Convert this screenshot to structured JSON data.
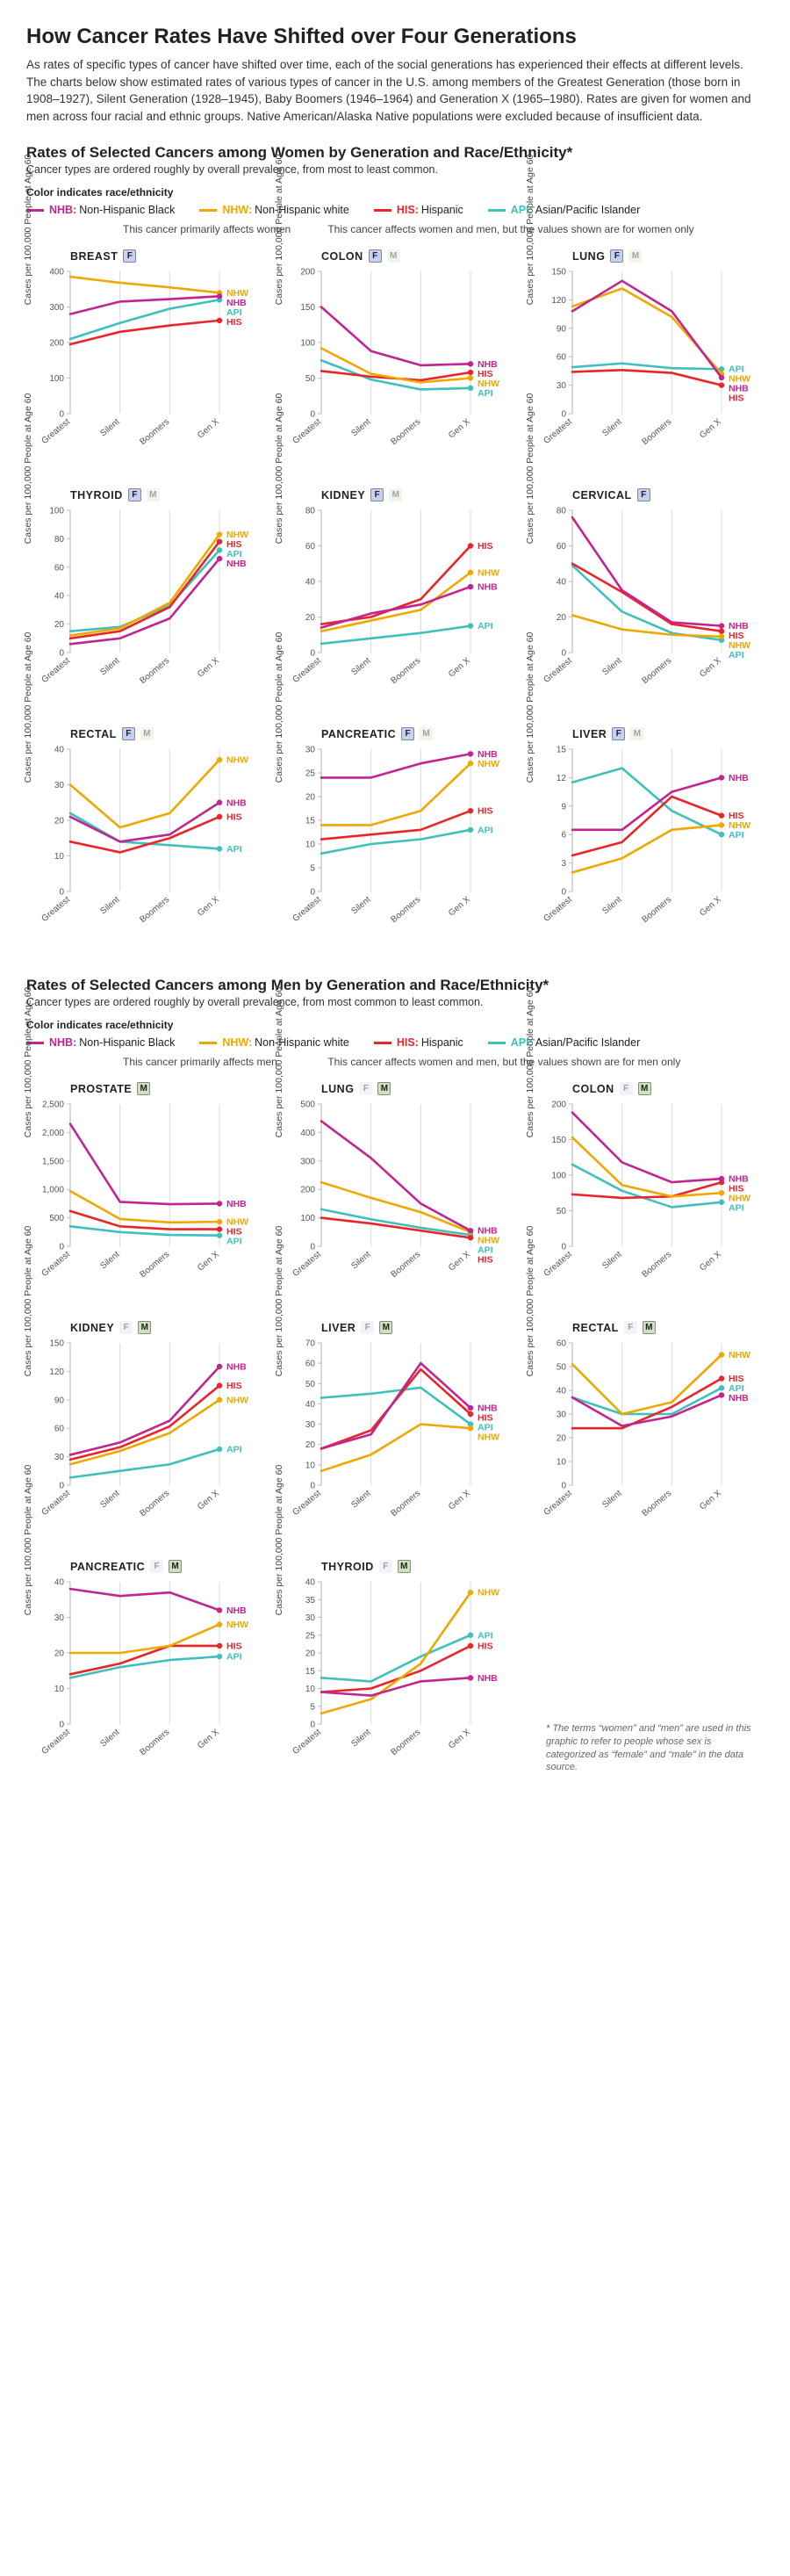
{
  "colors": {
    "NHB": "#c2258f",
    "NHW": "#efa800",
    "HIS": "#e8262a",
    "API": "#3fc0be",
    "axis": "#bdbdbd",
    "grid": "#d9d9d9",
    "text": "#222222",
    "bg": "#ffffff"
  },
  "title": "How Cancer Rates Have Shifted over Four Generations",
  "intro": "As rates of specific types of cancer have shifted over time, each of the social generations has experienced their effects at different levels. The charts below show estimated rates of various types of cancer in the U.S. among members of the Greatest Generation (those born in 1908–1927), Silent Generation (1928–1945), Baby Boomers (1946–1964) and Generation X (1965–1980). Rates are given for women and men across four racial and ethnic groups. Native American/Alaska Native populations were excluded because of insufficient data.",
  "legend_title": "Color indicates race/ethnicity",
  "legend": [
    {
      "code": "NHB",
      "label": "Non-Hispanic Black"
    },
    {
      "code": "NHW",
      "label": "Non-Hispanic white"
    },
    {
      "code": "HIS",
      "label": "Hispanic"
    },
    {
      "code": "API",
      "label": "Asian/Pacific Islander"
    }
  ],
  "categories": [
    "Greatest",
    "Silent",
    "Boomers",
    "Gen X"
  ],
  "ylabel": "Cases per 100,000 People at Age 60",
  "hint_primary_f": "This cancer primarily affects women",
  "hint_primary_m": "This cancer primarily affects men",
  "hint_both_f": "This cancer affects women and men, but the values shown are for women only",
  "hint_both_m": "This cancer affects women and men, but the values shown are for men only",
  "footnote": "* The terms “women” and “men” are used in this graphic to refer to people whose sex is categorized as “female” and “male” in the data source.",
  "sections": [
    {
      "heading": "Rates of Selected Cancers among Women by Generation and Race/Ethnicity*",
      "sub": "Cancer types are ordered roughly by overall prevalence, from most to least common.",
      "hint_primary": "hint_primary_f",
      "hint_both": "hint_both_f",
      "primary_badge": "F",
      "charts": [
        {
          "name": "BREAST",
          "badges": [
            "Fp"
          ],
          "ymax": 400,
          "ystep": 100,
          "endlabels": [
            "NHW",
            "NHB",
            "API",
            "HIS"
          ],
          "series": {
            "NHB": [
              280,
              315,
              322,
              330
            ],
            "NHW": [
              385,
              368,
              355,
              340
            ],
            "HIS": [
              195,
              230,
              248,
              262
            ],
            "API": [
              210,
              255,
              295,
              320
            ]
          }
        },
        {
          "name": "COLON",
          "badges": [
            "Fp",
            "M"
          ],
          "ymax": 200,
          "ystep": 50,
          "endlabels": [
            "NHB",
            "HIS",
            "NHW",
            "API"
          ],
          "series": {
            "NHB": [
              150,
              88,
              68,
              70
            ],
            "NHW": [
              92,
              56,
              44,
              50
            ],
            "HIS": [
              60,
              52,
              47,
              58
            ],
            "API": [
              75,
              48,
              34,
              36
            ]
          }
        },
        {
          "name": "LUNG",
          "badges": [
            "Fp",
            "M"
          ],
          "ymax": 150,
          "ystep": 30,
          "endlabels": [
            "API",
            "NHW",
            "NHB",
            "HIS"
          ],
          "series": {
            "NHB": [
              108,
              140,
              108,
              38
            ],
            "NHW": [
              113,
              132,
              102,
              42
            ],
            "HIS": [
              44,
              46,
              43,
              30
            ],
            "API": [
              49,
              53,
              48,
              47
            ]
          }
        },
        {
          "name": "THYROID",
          "badges": [
            "Fp",
            "M"
          ],
          "ymax": 100,
          "ystep": 20,
          "endlabels": [
            "NHW",
            "HIS",
            "API",
            "NHB"
          ],
          "series": {
            "NHB": [
              6,
              10,
              24,
              66
            ],
            "NHW": [
              12,
              17,
              35,
              83
            ],
            "HIS": [
              10,
              15,
              32,
              78
            ],
            "API": [
              15,
              18,
              33,
              72
            ]
          }
        },
        {
          "name": "KIDNEY",
          "badges": [
            "Fp",
            "M"
          ],
          "ymax": 80,
          "ystep": 20,
          "endlabels": [
            "HIS",
            "NHW",
            "NHB",
            "API"
          ],
          "series": {
            "NHB": [
              14,
              22,
              27,
              37
            ],
            "NHW": [
              12,
              18,
              24,
              45
            ],
            "HIS": [
              16,
              20,
              30,
              60
            ],
            "API": [
              5,
              8,
              11,
              15
            ]
          }
        },
        {
          "name": "CERVICAL",
          "badges": [
            "Fp"
          ],
          "ymax": 80,
          "ystep": 20,
          "endlabels": [
            "NHB",
            "HIS",
            "NHW",
            "API"
          ],
          "series": {
            "NHB": [
              76,
              35,
              17,
              15
            ],
            "NHW": [
              21,
              13,
              10,
              9
            ],
            "HIS": [
              50,
              34,
              16,
              12
            ],
            "API": [
              49,
              23,
              11,
              7
            ]
          }
        },
        {
          "name": "RECTAL",
          "badges": [
            "Fp",
            "M"
          ],
          "ymax": 40,
          "ystep": 10,
          "endlabels": [
            "NHW",
            "NHB",
            "HIS",
            "API"
          ],
          "series": {
            "NHB": [
              21,
              14,
              16,
              25
            ],
            "NHW": [
              30,
              18,
              22,
              37
            ],
            "HIS": [
              14,
              11,
              15,
              21
            ],
            "API": [
              22,
              14,
              13,
              12
            ]
          }
        },
        {
          "name": "PANCREATIC",
          "badges": [
            "Fp",
            "M"
          ],
          "ymax": 30,
          "ystep": 5,
          "endlabels": [
            "NHB",
            "NHW",
            "HIS",
            "API"
          ],
          "series": {
            "NHB": [
              24,
              24,
              27,
              29
            ],
            "NHW": [
              14,
              14,
              17,
              27
            ],
            "HIS": [
              11,
              12,
              13,
              17
            ],
            "API": [
              8,
              10,
              11,
              13
            ]
          }
        },
        {
          "name": "LIVER",
          "badges": [
            "Fp",
            "M"
          ],
          "ymax": 15,
          "ystep": 3,
          "endlabels": [
            "NHB",
            "HIS",
            "NHW",
            "API"
          ],
          "series": {
            "NHB": [
              6.5,
              6.5,
              10.5,
              12
            ],
            "NHW": [
              2,
              3.5,
              6.5,
              7
            ],
            "HIS": [
              3.8,
              5.2,
              10,
              8
            ],
            "API": [
              11.5,
              13,
              8.5,
              6
            ]
          }
        }
      ]
    },
    {
      "heading": "Rates of Selected Cancers among Men by Generation and Race/Ethnicity*",
      "sub": "Cancer types are ordered roughly by overall prevalence, from most common to least common.",
      "hint_primary": "hint_primary_m",
      "hint_both": "hint_both_m",
      "primary_badge": "M",
      "charts": [
        {
          "name": "PROSTATE",
          "badges": [
            "Mp"
          ],
          "ymax": 2500,
          "ystep": 500,
          "endlabels": [
            "NHB",
            "NHW",
            "HIS",
            "API"
          ],
          "series": {
            "NHB": [
              2150,
              780,
              740,
              750
            ],
            "NHW": [
              970,
              480,
              420,
              430
            ],
            "HIS": [
              620,
              350,
              300,
              300
            ],
            "API": [
              350,
              250,
              200,
              190
            ]
          }
        },
        {
          "name": "LUNG",
          "badges": [
            "F",
            "Mp"
          ],
          "ymax": 500,
          "ystep": 100,
          "endlabels": [
            "NHB",
            "NHW",
            "API",
            "HIS"
          ],
          "series": {
            "NHB": [
              440,
              310,
              150,
              55
            ],
            "NHW": [
              225,
              170,
              120,
              50
            ],
            "HIS": [
              100,
              80,
              55,
              30
            ],
            "API": [
              130,
              95,
              65,
              40
            ]
          }
        },
        {
          "name": "COLON",
          "badges": [
            "F",
            "Mp"
          ],
          "ymax": 200,
          "ystep": 50,
          "endlabels": [
            "NHB",
            "HIS",
            "NHW",
            "API"
          ],
          "series": {
            "NHB": [
              188,
              118,
              90,
              95
            ],
            "NHW": [
              153,
              86,
              70,
              75
            ],
            "HIS": [
              73,
              68,
              70,
              90
            ],
            "API": [
              115,
              78,
              55,
              62
            ]
          }
        },
        {
          "name": "KIDNEY",
          "badges": [
            "F",
            "Mp"
          ],
          "ymax": 150,
          "ystep": 30,
          "endlabels": [
            "NHB",
            "HIS",
            "NHW",
            "API"
          ],
          "series": {
            "NHB": [
              32,
              45,
              68,
              125
            ],
            "NHW": [
              22,
              36,
              55,
              90
            ],
            "HIS": [
              27,
              40,
              62,
              105
            ],
            "API": [
              8,
              15,
              22,
              38
            ]
          }
        },
        {
          "name": "LIVER",
          "badges": [
            "F",
            "Mp"
          ],
          "ymax": 70,
          "ystep": 10,
          "endlabels": [
            "NHB",
            "HIS",
            "API",
            "NHW"
          ],
          "series": {
            "NHB": [
              18,
              25,
              60,
              38
            ],
            "NHW": [
              7,
              15,
              30,
              28
            ],
            "HIS": [
              18,
              27,
              57,
              35
            ],
            "API": [
              43,
              45,
              48,
              30
            ]
          }
        },
        {
          "name": "RECTAL",
          "badges": [
            "F",
            "Mp"
          ],
          "ymax": 60,
          "ystep": 10,
          "endlabels": [
            "NHW",
            "HIS",
            "API",
            "NHB"
          ],
          "series": {
            "NHB": [
              37,
              25,
              29,
              38
            ],
            "NHW": [
              51,
              30,
              35,
              55
            ],
            "HIS": [
              24,
              24,
              33,
              45
            ],
            "API": [
              37,
              30,
              30,
              41
            ]
          }
        },
        {
          "name": "PANCREATIC",
          "badges": [
            "F",
            "Mp"
          ],
          "ymax": 40,
          "ystep": 10,
          "endlabels": [
            "NHB",
            "NHW",
            "HIS",
            "API"
          ],
          "series": {
            "NHB": [
              38,
              36,
              37,
              32
            ],
            "NHW": [
              20,
              20,
              22,
              28
            ],
            "HIS": [
              14,
              17,
              22,
              22
            ],
            "API": [
              13,
              16,
              18,
              19
            ]
          }
        },
        {
          "name": "THYROID",
          "badges": [
            "F",
            "Mp"
          ],
          "ymax": 40,
          "ystep": 5,
          "endlabels": [
            "NHW",
            "API",
            "HIS",
            "NHB"
          ],
          "series": {
            "NHB": [
              9,
              8,
              12,
              13
            ],
            "NHW": [
              3,
              7,
              17,
              37
            ],
            "HIS": [
              9,
              10,
              15,
              22
            ],
            "API": [
              13,
              12,
              19,
              25
            ]
          }
        }
      ]
    }
  ]
}
